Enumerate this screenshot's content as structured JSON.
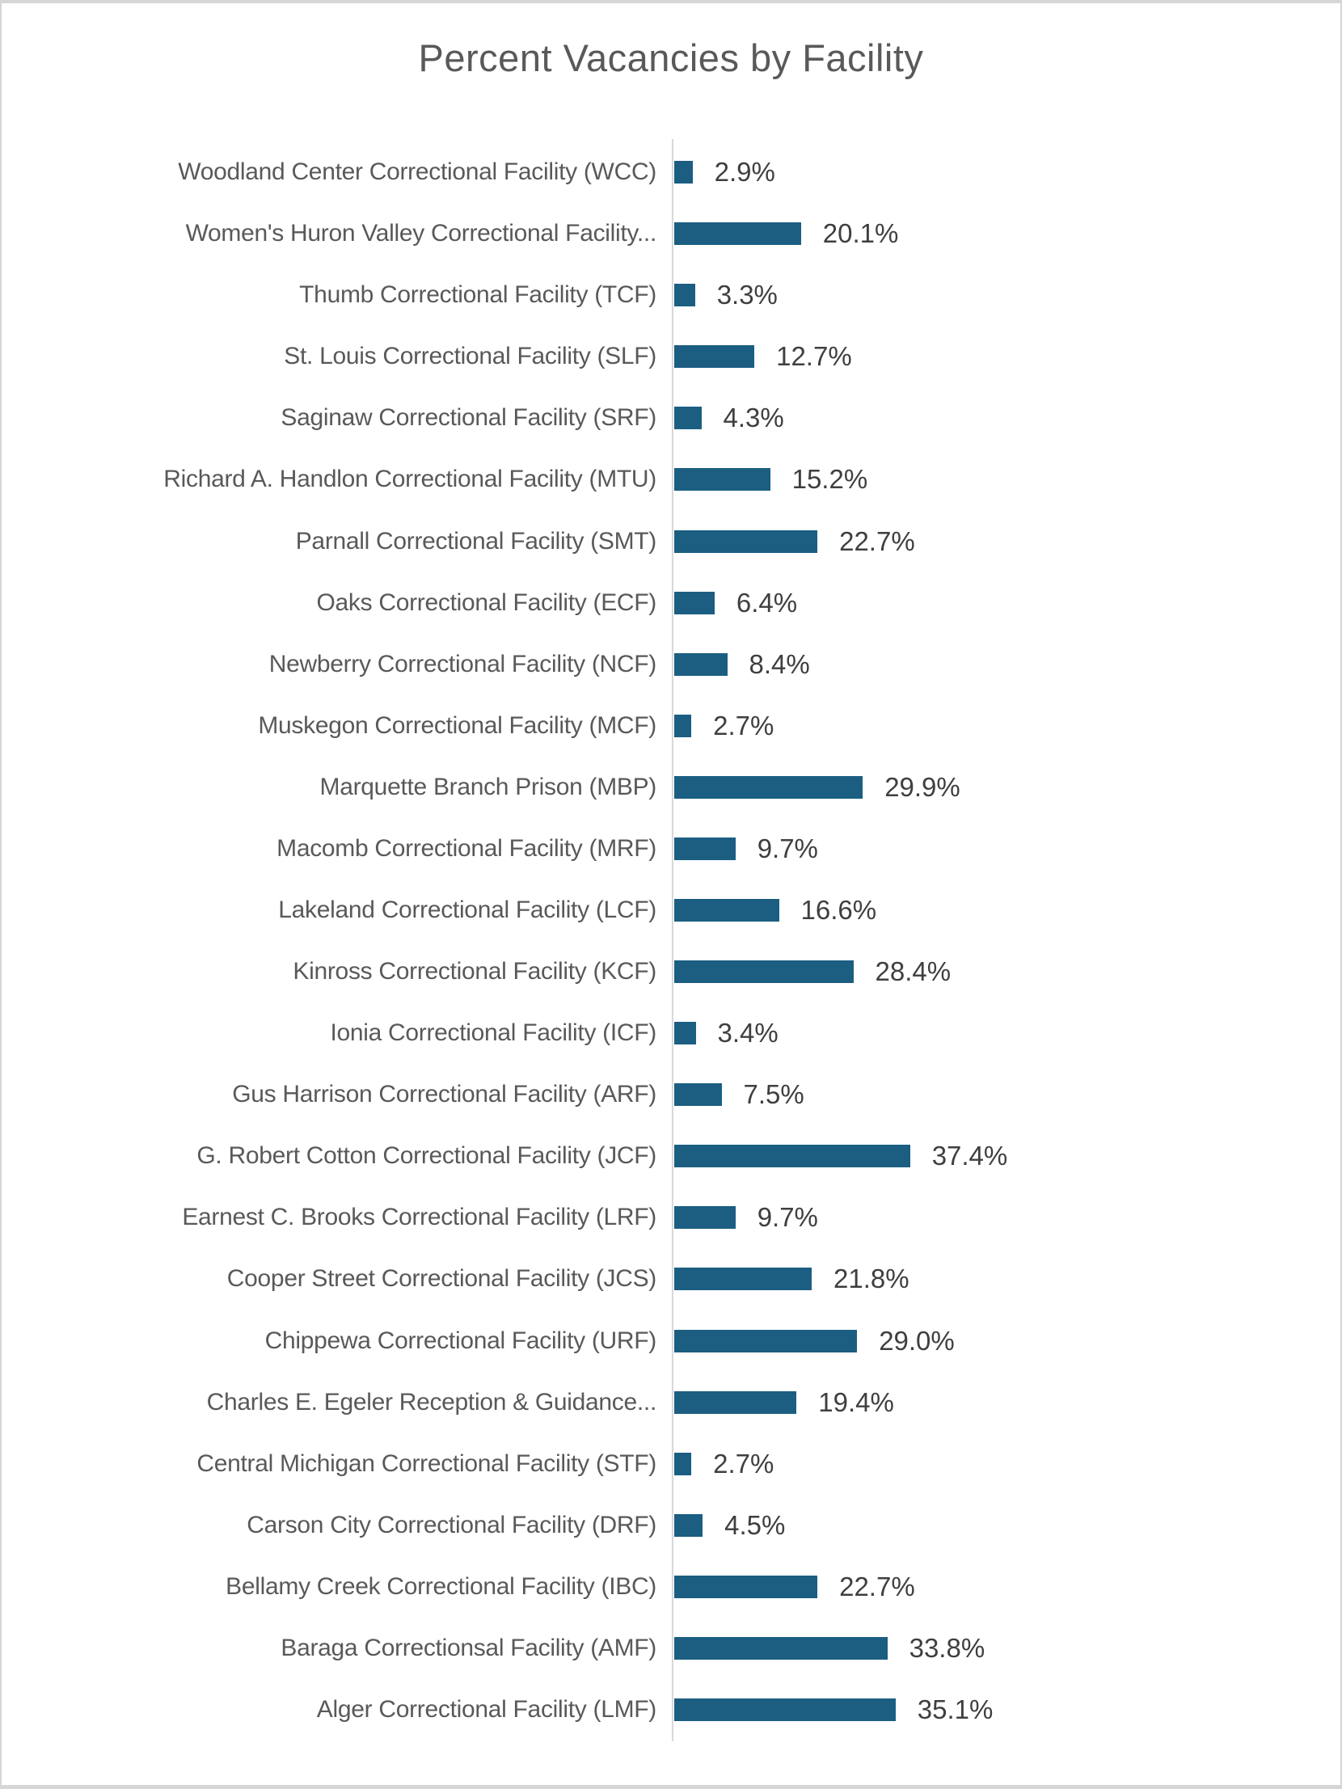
{
  "chart_data": {
    "type": "bar",
    "orientation": "horizontal",
    "title": "Percent Vacancies by Facility",
    "categories": [
      "Woodland Center Correctional Facility (WCC)",
      "Women's Huron Valley Correctional Facility...",
      "Thumb Correctional Facility (TCF)",
      "St. Louis Correctional Facility (SLF)",
      "Saginaw Correctional Facility (SRF)",
      "Richard A. Handlon Correctional Facility (MTU)",
      "Parnall Correctional Facility (SMT)",
      "Oaks Correctional Facility (ECF)",
      "Newberry Correctional Facility (NCF)",
      "Muskegon Correctional Facility (MCF)",
      "Marquette Branch Prison (MBP)",
      "Macomb Correctional Facility (MRF)",
      "Lakeland Correctional Facility (LCF)",
      "Kinross Correctional Facility (KCF)",
      "Ionia Correctional Facility (ICF)",
      "Gus Harrison Correctional Facility (ARF)",
      "G. Robert Cotton Correctional Facility (JCF)",
      "Earnest C. Brooks Correctional Facility (LRF)",
      "Cooper Street Correctional Facility (JCS)",
      "Chippewa Correctional Facility (URF)",
      "Charles E. Egeler Reception & Guidance...",
      "Central Michigan Correctional Facility (STF)",
      "Carson City Correctional Facility (DRF)",
      "Bellamy Creek Correctional Facility (IBC)",
      "Baraga Correctionsal Facility (AMF)",
      "Alger Correctional Facility (LMF)"
    ],
    "values": [
      2.9,
      20.1,
      3.3,
      12.7,
      4.3,
      15.2,
      22.7,
      6.4,
      8.4,
      2.7,
      29.9,
      9.7,
      16.6,
      28.4,
      3.4,
      7.5,
      37.4,
      9.7,
      21.8,
      29.0,
      19.4,
      2.7,
      4.5,
      22.7,
      33.8,
      35.1
    ],
    "value_labels": [
      "2.9%",
      "20.1%",
      "3.3%",
      "12.7%",
      "4.3%",
      "15.2%",
      "22.7%",
      "6.4%",
      "8.4%",
      "2.7%",
      "29.9%",
      "9.7%",
      "16.6%",
      "28.4%",
      "3.4%",
      "7.5%",
      "37.4%",
      "9.7%",
      "21.8%",
      "29.0%",
      "19.4%",
      "2.7%",
      "4.5%",
      "22.7%",
      "33.8%",
      "35.1%"
    ],
    "xlim": [
      0,
      40
    ],
    "grid": false,
    "legend": null,
    "data_labels": "outside-end",
    "colors": {
      "bar": "#1B5E82",
      "axis_line": "#D9D9D9",
      "title": "#595959",
      "category_label": "#595959",
      "value_label": "#3F3F3F"
    }
  }
}
